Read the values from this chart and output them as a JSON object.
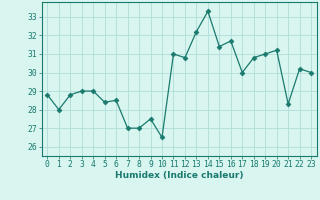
{
  "x": [
    0,
    1,
    2,
    3,
    4,
    5,
    6,
    7,
    8,
    9,
    10,
    11,
    12,
    13,
    14,
    15,
    16,
    17,
    18,
    19,
    20,
    21,
    22,
    23
  ],
  "y": [
    28.8,
    28.0,
    28.8,
    29.0,
    29.0,
    28.4,
    28.5,
    27.0,
    27.0,
    27.5,
    26.5,
    31.0,
    30.8,
    32.2,
    33.3,
    31.4,
    31.7,
    30.0,
    30.8,
    31.0,
    31.2,
    28.3,
    30.2,
    30.0
  ],
  "line_color": "#1a7a6e",
  "marker": "D",
  "marker_size": 2.5,
  "bg_color": "#d8f5f0",
  "grid_color": "#b0ddd8",
  "xlabel": "Humidex (Indice chaleur)",
  "xlabel_color": "#1a7a6e",
  "tick_color": "#1a7a6e",
  "ylim": [
    25.5,
    33.8
  ],
  "xlim": [
    -0.5,
    23.5
  ],
  "yticks": [
    26,
    27,
    28,
    29,
    30,
    31,
    32,
    33
  ],
  "xticks": [
    0,
    1,
    2,
    3,
    4,
    5,
    6,
    7,
    8,
    9,
    10,
    11,
    12,
    13,
    14,
    15,
    16,
    17,
    18,
    19,
    20,
    21,
    22,
    23
  ],
  "title_fontsize": 7,
  "label_fontsize": 6.5,
  "tick_fontsize": 5.8
}
